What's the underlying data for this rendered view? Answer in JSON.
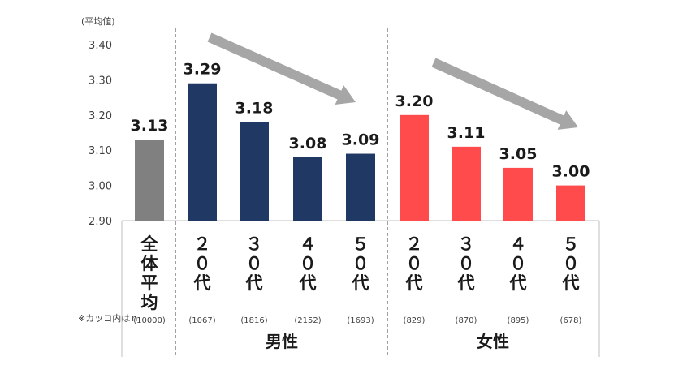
{
  "chart_data": {
    "type": "bar",
    "unit_label": "(平均値)",
    "ylim": [
      2.9,
      3.4
    ],
    "y_ticks": [
      "3.40",
      "3.30",
      "3.20",
      "3.10",
      "3.00",
      "2.90"
    ],
    "y_tick_values": [
      3.4,
      3.3,
      3.2,
      3.1,
      3.0,
      2.9
    ],
    "categories": [
      {
        "label": "全体平均",
        "n": "(10000)",
        "value": 3.13,
        "value_label": "3.13",
        "group": "total"
      },
      {
        "label": "２０代",
        "n": "(1067)",
        "value": 3.29,
        "value_label": "3.29",
        "group": "male"
      },
      {
        "label": "３０代",
        "n": "(1816)",
        "value": 3.18,
        "value_label": "3.18",
        "group": "male"
      },
      {
        "label": "４０代",
        "n": "(2152)",
        "value": 3.08,
        "value_label": "3.08",
        "group": "male"
      },
      {
        "label": "５０代",
        "n": "(1693)",
        "value": 3.09,
        "value_label": "3.09",
        "group": "male"
      },
      {
        "label": "２０代",
        "n": "(829)",
        "value": 3.2,
        "value_label": "3.20",
        "group": "female"
      },
      {
        "label": "３０代",
        "n": "(870)",
        "value": 3.11,
        "value_label": "3.11",
        "group": "female"
      },
      {
        "label": "４０代",
        "n": "(895)",
        "value": 3.05,
        "value_label": "3.05",
        "group": "female"
      },
      {
        "label": "５０代",
        "n": "(678)",
        "value": 3.0,
        "value_label": "3.00",
        "group": "female"
      }
    ],
    "groups": [
      {
        "key": "male",
        "label": "男性"
      },
      {
        "key": "female",
        "label": "女性"
      }
    ],
    "n_note": "※カッコ内はｎ",
    "colors": {
      "total": "#808080",
      "male": "#1f3864",
      "female": "#ff4b4b",
      "arrow": "#a6a6a6",
      "axis": "#bfbfbf",
      "divider": "#404040"
    },
    "grid": false,
    "legend": "none"
  }
}
